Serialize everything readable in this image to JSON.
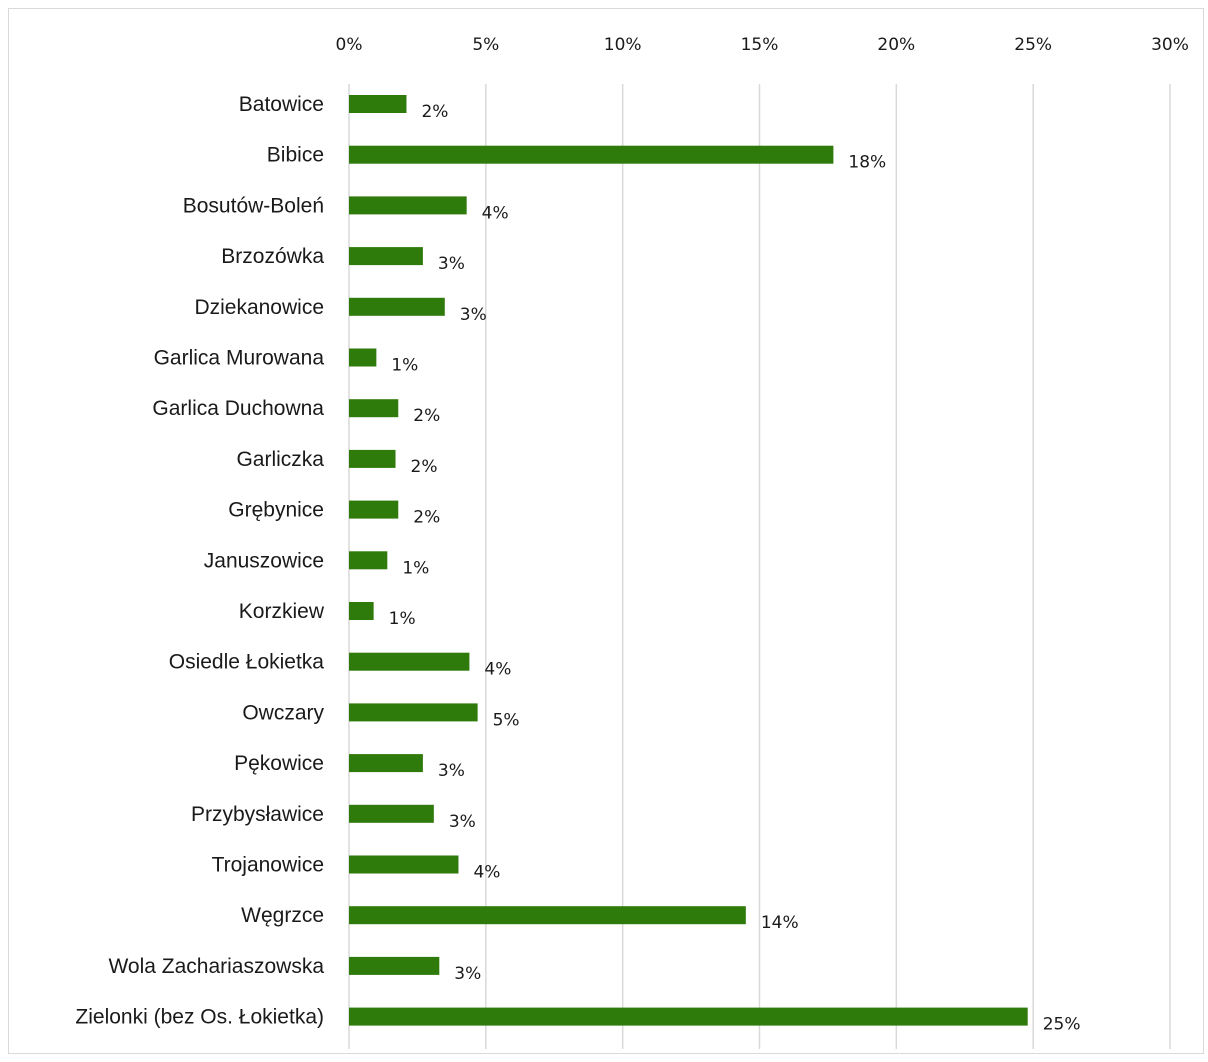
{
  "chart_data": {
    "type": "bar",
    "orientation": "horizontal",
    "title": "",
    "xlabel": "",
    "ylabel": "",
    "xlim": [
      0,
      30
    ],
    "x_ticks": [
      "0%",
      "5%",
      "10%",
      "15%",
      "20%",
      "25%",
      "30%"
    ],
    "x_axis_position": "top",
    "grid": true,
    "legend": "none",
    "bar_color": "#2e7a0a",
    "categories": [
      "Batowice",
      "Bibice",
      "Bosutów-Boleń",
      "Brzozówka",
      "Dziekanowice",
      "Garlica Murowana",
      "Garlica Duchowna",
      "Garliczka",
      "Grębynice",
      "Januszowice",
      "Korzkiew",
      "Osiedle Łokietka",
      "Owczary",
      "Pękowice",
      "Przybysławice",
      "Trojanowice",
      "Węgrzce",
      "Wola Zachariaszowska",
      "Zielonki (bez Os. Łokietka)"
    ],
    "values": [
      2.1,
      17.7,
      4.3,
      2.7,
      3.5,
      1.0,
      1.8,
      1.7,
      1.8,
      1.4,
      0.9,
      4.4,
      4.7,
      2.7,
      3.1,
      4.0,
      14.5,
      3.3,
      24.8
    ],
    "data_labels": [
      "2%",
      "18%",
      "4%",
      "3%",
      "3%",
      "1%",
      "2%",
      "2%",
      "2%",
      "1%",
      "1%",
      "4%",
      "5%",
      "3%",
      "3%",
      "4%",
      "14%",
      "3%",
      "25%"
    ]
  }
}
